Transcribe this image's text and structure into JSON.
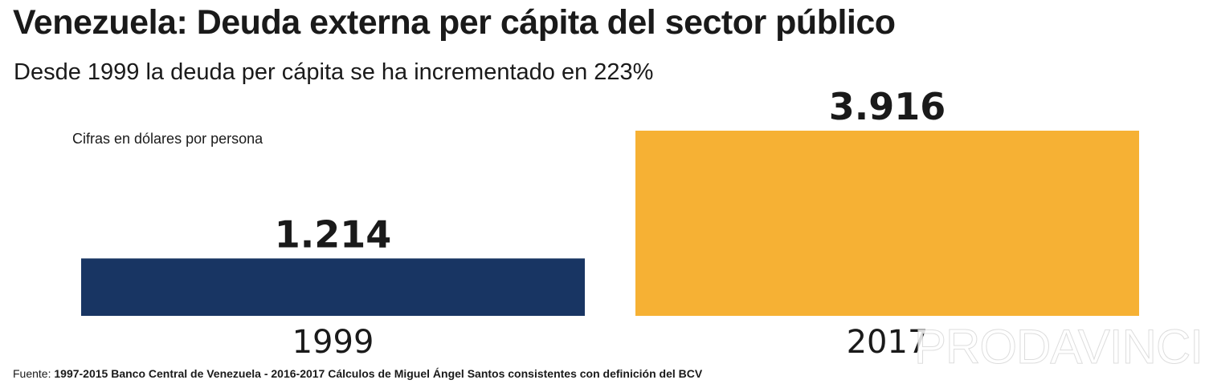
{
  "header": {
    "title": "Venezuela: Deuda externa per cápita del sector público",
    "subtitle": "Desde 1999 la deuda per cápita se ha incrementado en 223%"
  },
  "chart_data": {
    "type": "bar",
    "categories": [
      "1999",
      "2017"
    ],
    "values": [
      1214,
      3916
    ],
    "value_labels": [
      "1.214",
      "3.916"
    ],
    "colors": [
      "#183563",
      "#f6b134"
    ],
    "units_note": "Cifras en dólares por persona",
    "title": "Venezuela: Deuda externa per cápita del sector público",
    "subtitle": "Desde 1999 la deuda per cápita se ha incrementado en 223%",
    "xlabel": "",
    "ylabel": "",
    "ylim": [
      0,
      3916
    ],
    "grid": false,
    "legend": "none"
  },
  "footer": {
    "source_label": "Fuente:",
    "source_text": "1997-2015 Banco Central de Venezuela - 2016-2017 Cálculos de Miguel Ángel Santos consistentes con definición del BCV"
  },
  "branding": {
    "watermark": "PRODAVINCI"
  }
}
